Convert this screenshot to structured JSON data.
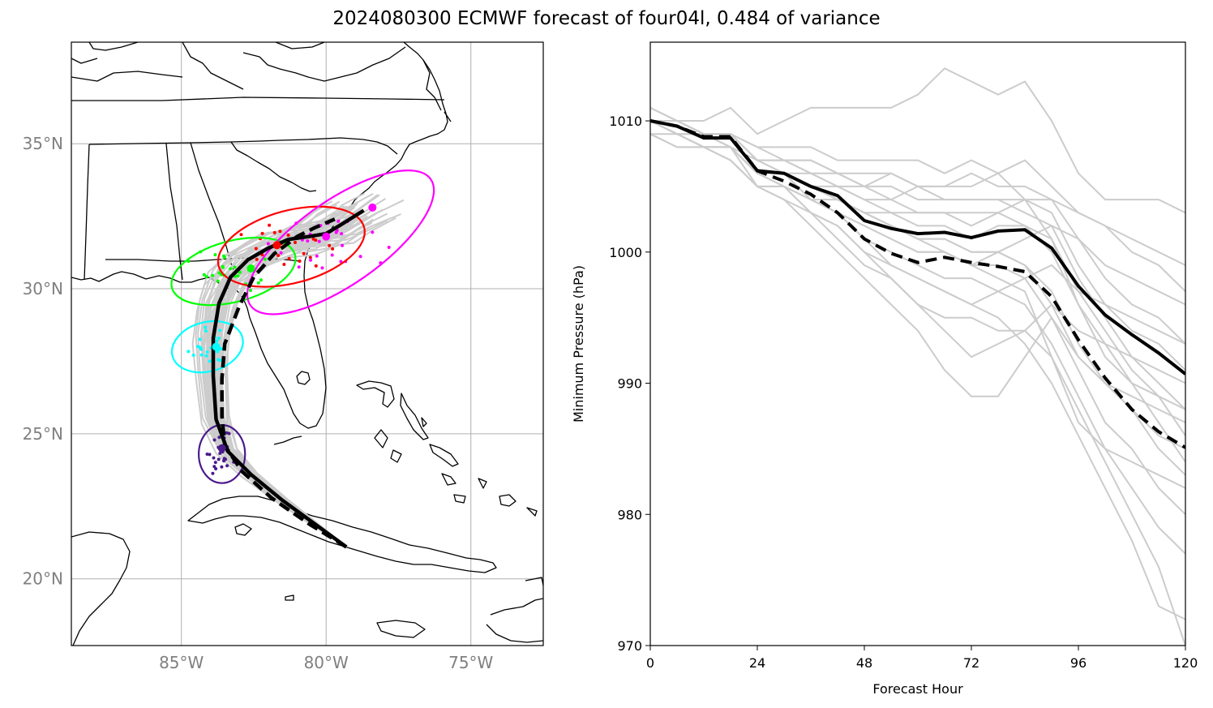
{
  "figure": {
    "title": "2024080300 ECMWF forecast of four04l, 0.484 of variance"
  },
  "chart_data": [
    {
      "type": "map",
      "lon_range": [
        -88.8,
        -72.5
      ],
      "lat_range": [
        17.7,
        38.5
      ],
      "lat_ticks": [
        20,
        25,
        30,
        35
      ],
      "lat_tick_labels": [
        "20°N",
        "25°N",
        "30°N",
        "35°N"
      ],
      "lon_ticks": [
        -85,
        -80,
        -75
      ],
      "lon_tick_labels": [
        "85°W",
        "80°W",
        "75°W"
      ],
      "grid": true,
      "colors": {
        "ensemble": "#cccccc",
        "mean": "#000000",
        "purple": "#4b1a8c",
        "cyan": "#00ffff",
        "green": "#00ff00",
        "red": "#ff0000",
        "magenta": "#ff00ff"
      },
      "mean_track_solid": [
        [
          -79.3,
          21.1
        ],
        [
          -80.4,
          21.9
        ],
        [
          -81.5,
          22.7
        ],
        [
          -82.6,
          23.6
        ],
        [
          -83.4,
          24.4
        ],
        [
          -83.8,
          25.5
        ],
        [
          -83.9,
          27.0
        ],
        [
          -83.9,
          28.3
        ],
        [
          -83.7,
          29.5
        ],
        [
          -83.3,
          30.4
        ],
        [
          -82.7,
          31.0
        ],
        [
          -82.0,
          31.4
        ],
        [
          -81.3,
          31.7
        ],
        [
          -80.6,
          31.8
        ],
        [
          -80.0,
          31.9
        ],
        [
          -79.5,
          32.2
        ],
        [
          -78.7,
          32.7
        ]
      ],
      "mean_track_dashed": [
        [
          -79.3,
          21.1
        ],
        [
          -80.6,
          21.9
        ],
        [
          -81.9,
          22.8
        ],
        [
          -82.9,
          23.7
        ],
        [
          -83.5,
          24.6
        ],
        [
          -83.6,
          25.6
        ],
        [
          -83.6,
          26.9
        ],
        [
          -83.5,
          28.1
        ],
        [
          -83.0,
          29.4
        ],
        [
          -82.5,
          30.4
        ],
        [
          -81.8,
          31.2
        ],
        [
          -81.0,
          31.8
        ],
        [
          -80.4,
          32.1
        ],
        [
          -79.7,
          32.4
        ]
      ],
      "ellipses": [
        {
          "color": "purple",
          "center": [
            -83.6,
            24.3
          ],
          "rlon": 0.8,
          "rlat": 1.0,
          "angle": 0
        },
        {
          "color": "cyan",
          "center": [
            -84.1,
            28.0
          ],
          "rlon": 1.25,
          "rlat": 0.85,
          "angle": -15
        },
        {
          "color": "green",
          "center": [
            -83.2,
            30.6
          ],
          "rlon": 2.2,
          "rlat": 1.05,
          "angle": -15
        },
        {
          "color": "red",
          "center": [
            -81.2,
            31.45
          ],
          "rlon": 2.6,
          "rlat": 1.25,
          "angle": -15
        },
        {
          "color": "magenta",
          "center": [
            -79.5,
            31.6
          ],
          "rlon": 3.8,
          "rlat": 1.45,
          "angle": -35
        }
      ],
      "markers": [
        {
          "color": "purple",
          "lon": -83.6,
          "lat": 24.5
        },
        {
          "color": "cyan",
          "lon": -83.8,
          "lat": 28.0
        },
        {
          "color": "green",
          "lon": -82.6,
          "lat": 30.7
        },
        {
          "color": "red",
          "lon": -81.7,
          "lat": 31.5
        },
        {
          "color": "magenta",
          "lon": -80.0,
          "lat": 31.8
        },
        {
          "color": "magenta",
          "lon": -78.4,
          "lat": 32.8
        }
      ]
    },
    {
      "type": "line",
      "xlabel": "Forecast Hour",
      "ylabel": "Minimum Pressure (hPa)",
      "xlim": [
        0,
        120
      ],
      "ylim": [
        970,
        1016
      ],
      "xticks": [
        0,
        24,
        48,
        72,
        96,
        120
      ],
      "yticks": [
        970,
        980,
        990,
        1000,
        1010
      ],
      "x": [
        0,
        6,
        12,
        18,
        24,
        30,
        36,
        42,
        48,
        54,
        60,
        66,
        72,
        78,
        84,
        90,
        96,
        102,
        108,
        114,
        120
      ],
      "series": [
        {
          "style": "solid",
          "color": "#000000",
          "values": [
            1010,
            1009.6,
            1008.7,
            1008.7,
            1006.2,
            1006.0,
            1005.0,
            1004.3,
            1002.4,
            1001.8,
            1001.4,
            1001.5,
            1001.1,
            1001.6,
            1001.7,
            1000.3,
            997.4,
            995.2,
            993.7,
            992.3,
            990.7
          ]
        },
        {
          "style": "dashed",
          "color": "#000000",
          "values": [
            1010,
            1009.6,
            1008.8,
            1008.8,
            1006.2,
            1005.4,
            1004.4,
            1003.0,
            1001.0,
            999.9,
            999.2,
            999.6,
            999.2,
            998.9,
            998.5,
            996.6,
            993.3,
            990.4,
            988.0,
            986.3,
            985.1
          ]
        }
      ],
      "ensemble_color": "#cccccc",
      "ensemble": [
        [
          1011,
          1010,
          1010,
          1011,
          1009,
          1010,
          1011,
          1011,
          1011,
          1011,
          1012,
          1014,
          1013,
          1012,
          1013,
          1010,
          1006,
          1004,
          1004,
          1004,
          1003
        ],
        [
          1011,
          1010,
          1009,
          1009,
          1008,
          1008,
          1008,
          1007,
          1007,
          1007,
          1007,
          1006,
          1007,
          1006,
          1007,
          1005,
          1003,
          1002,
          1001,
          1000,
          999
        ],
        [
          1010,
          1010,
          1009,
          1009,
          1007,
          1007,
          1007,
          1006,
          1006,
          1006,
          1005,
          1005,
          1006,
          1005,
          1005,
          1004,
          1001,
          998,
          996,
          995,
          993
        ],
        [
          1010,
          1010,
          1009,
          1009,
          1007,
          1007,
          1006,
          1006,
          1005,
          1006,
          1005,
          1005,
          1005,
          1006,
          1004,
          1003,
          999,
          996,
          994,
          993,
          991
        ],
        [
          1010,
          1009,
          1009,
          1008,
          1007,
          1006,
          1006,
          1005,
          1005,
          1004,
          1005,
          1004,
          1004,
          1004,
          1003,
          1002,
          998,
          995,
          992,
          990,
          988
        ],
        [
          1010,
          1009,
          1009,
          1008,
          1006,
          1006,
          1005,
          1005,
          1004,
          1003,
          1003,
          1003,
          1002,
          1003,
          1002,
          1001,
          997,
          994,
          991,
          989,
          986
        ],
        [
          1010,
          1009,
          1008,
          1008,
          1006,
          1006,
          1005,
          1004,
          1003,
          1003,
          1002,
          1002,
          1001,
          1002,
          1002,
          1000,
          996,
          993,
          990,
          987,
          984
        ],
        [
          1010,
          1009,
          1008,
          1008,
          1006,
          1006,
          1004,
          1004,
          1003,
          1002,
          1001,
          1001,
          1000,
          1000,
          999,
          997,
          993,
          990,
          988,
          985,
          983
        ],
        [
          1010,
          1009,
          1008,
          1008,
          1006,
          1005,
          1004,
          1003,
          1002,
          1001,
          1000,
          1000,
          999,
          999,
          998,
          995,
          991,
          987,
          985,
          982,
          980
        ],
        [
          1010,
          1009,
          1008,
          1008,
          1005,
          1005,
          1004,
          1003,
          1001,
          1000,
          999,
          998,
          998,
          997,
          996,
          993,
          989,
          985,
          982,
          979,
          977
        ],
        [
          1009,
          1009,
          1008,
          1007,
          1005,
          1005,
          1003,
          1002,
          1000,
          999,
          998,
          997,
          996,
          995,
          993,
          990,
          986,
          982,
          978,
          973,
          972
        ],
        [
          1009,
          1008,
          1008,
          1007,
          1005,
          1004,
          1003,
          1001,
          999,
          998,
          996,
          995,
          995,
          994,
          994,
          992,
          988,
          984,
          980,
          976,
          970
        ],
        [
          1009,
          1008,
          1008,
          1007,
          1005,
          1004,
          1002,
          1000,
          998,
          996,
          994,
          991,
          989,
          989,
          992,
          995,
          992,
          990,
          989,
          988,
          987
        ],
        [
          1010,
          1009,
          1008,
          1008,
          1006,
          1005,
          1003,
          1002,
          1000,
          998,
          996,
          994,
          992,
          993,
          994,
          996,
          994,
          993,
          992,
          991,
          990
        ],
        [
          1010,
          1009,
          1009,
          1008,
          1006,
          1006,
          1004,
          1003,
          1001,
          999,
          998,
          997,
          996,
          997,
          998,
          999,
          997,
          996,
          995,
          994,
          993
        ],
        [
          1010,
          1010,
          1009,
          1009,
          1007,
          1006,
          1005,
          1004,
          1003,
          1002,
          1001,
          1000,
          999,
          1000,
          1001,
          1002,
          1001,
          999,
          998,
          997,
          996
        ],
        [
          1011,
          1010,
          1009,
          1009,
          1007,
          1007,
          1006,
          1005,
          1004,
          1004,
          1003,
          1003,
          1003,
          1003,
          1004,
          1004,
          1003,
          1002,
          1000,
          999,
          997
        ],
        [
          1010,
          1010,
          1009,
          1009,
          1008,
          1007,
          1007,
          1006,
          1005,
          1005,
          1004,
          1004,
          1004,
          1004,
          1004,
          1001,
          996,
          992,
          990,
          989,
          988
        ],
        [
          1010,
          1009,
          1008,
          1008,
          1006,
          1005,
          1004,
          1003,
          1002,
          1001,
          1000,
          1000,
          999,
          998,
          997,
          992,
          987,
          985,
          984,
          983,
          982
        ],
        [
          1010,
          1009,
          1009,
          1008,
          1006,
          1006,
          1005,
          1004,
          1003,
          1002,
          1001,
          1001,
          1000,
          1000,
          999,
          996,
          992,
          990,
          988,
          986,
          985
        ]
      ]
    }
  ]
}
